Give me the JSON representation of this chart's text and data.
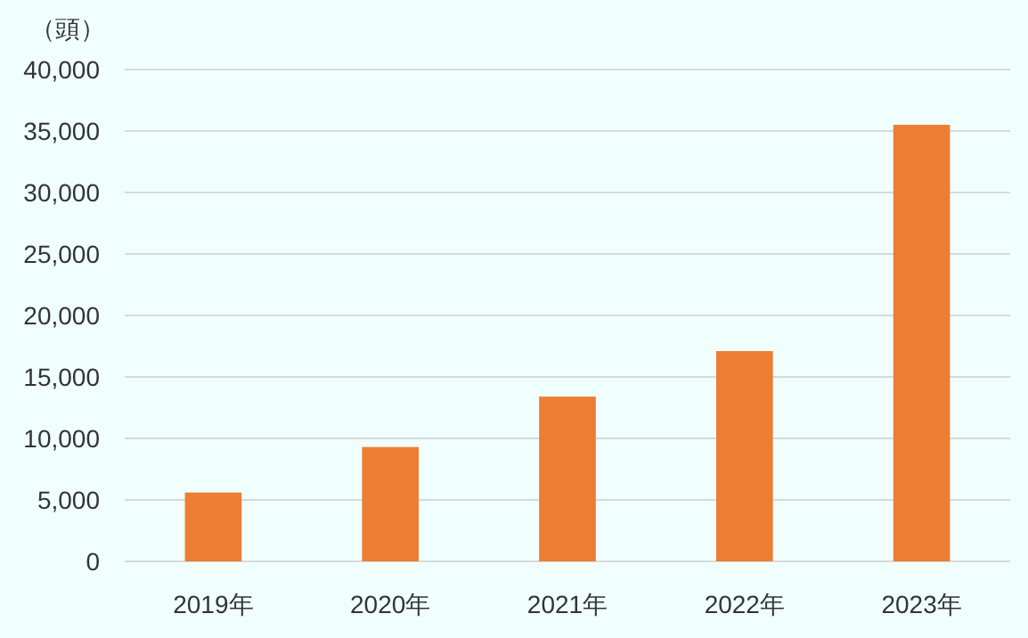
{
  "chart_data": {
    "type": "bar",
    "ylabel": "（頭）",
    "categories": [
      "2019年",
      "2020年",
      "2021年",
      "2022年",
      "2023年"
    ],
    "series": [
      {
        "color": "#ed7d31",
        "values": [
          5600,
          9300,
          13400,
          17100,
          35500
        ]
      }
    ],
    "ylim": [
      0,
      40000
    ],
    "yticks": [
      {
        "value": 0,
        "label": "0"
      },
      {
        "value": 5000,
        "label": "5,000"
      },
      {
        "value": 10000,
        "label": "10,000"
      },
      {
        "value": 15000,
        "label": "15,000"
      },
      {
        "value": 20000,
        "label": "20,000"
      },
      {
        "value": 25000,
        "label": "25,000"
      },
      {
        "value": 30000,
        "label": "30,000"
      },
      {
        "value": 35000,
        "label": "35,000"
      },
      {
        "value": 40000,
        "label": "40,000"
      }
    ],
    "grid": "y"
  }
}
